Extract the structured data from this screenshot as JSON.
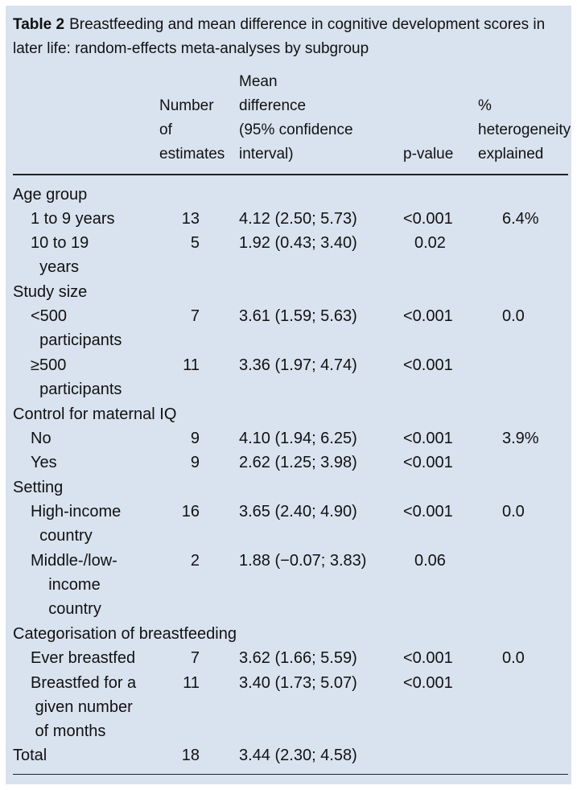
{
  "caption": {
    "label": "Table 2",
    "text": "Breastfeeding and mean difference in cognitive development scores in later life: random-effects meta-analyses by subgroup"
  },
  "headers": {
    "number": "Number\nof\nestimates",
    "mean": "Mean\ndifference\n(95% confidence\ninterval)",
    "pvalue": "p-value",
    "het": "%\nheterogeneity\nexplained"
  },
  "rows": {
    "age_group": "Age group",
    "age_1_label": "1 to 9 years",
    "age_1_n": "13",
    "age_1_md": "4.12 (2.50; 5.73)",
    "age_1_p": "<0.001",
    "age_1_het": "6.4%",
    "age_2_label": "10 to 19\n  years",
    "age_2_n": "5",
    "age_2_md": "1.92 (0.43; 3.40)",
    "age_2_p": "0.02",
    "study_size": "Study size",
    "ss_1_label": "<500\n  participants",
    "ss_1_n": "7",
    "ss_1_md": "3.61 (1.59; 5.63)",
    "ss_1_p": "<0.001",
    "ss_1_het": "0.0",
    "ss_2_label": "≥500\n  participants",
    "ss_2_n": "11",
    "ss_2_md": "3.36 (1.97; 4.74)",
    "ss_2_p": "<0.001",
    "maternal": "Control for maternal IQ",
    "mq_1_label": "No",
    "mq_1_n": "9",
    "mq_1_md": "4.10 (1.94; 6.25)",
    "mq_1_p": "<0.001",
    "mq_1_het": "3.9%",
    "mq_2_label": "Yes",
    "mq_2_n": "9",
    "mq_2_md": "2.62 (1.25; 3.98)",
    "mq_2_p": "<0.001",
    "setting": "Setting",
    "st_1_label": "High-income\n  country",
    "st_1_n": "16",
    "st_1_md": "3.65 (2.40; 4.90)",
    "st_1_p": "<0.001",
    "st_1_het": "0.0",
    "st_2_label": "Middle-/low-\n    income\n    country",
    "st_2_n": "2",
    "st_2_md": "1.88 (−0.07; 3.83)",
    "st_2_p": "0.06",
    "categorisation": "Categorisation of breastfeeding",
    "cb_1_label": "Ever breastfed",
    "cb_1_n": "7",
    "cb_1_md": "3.62 (1.66; 5.59)",
    "cb_1_p": "<0.001",
    "cb_1_het": "0.0",
    "cb_2_label": "Breastfed for a\n given number\n of months",
    "cb_2_n": "11",
    "cb_2_md": "3.40 (1.73; 5.07)",
    "cb_2_p": "<0.001",
    "total_label": "Total",
    "total_n": "18",
    "total_md": "3.44 (2.30; 4.58)"
  }
}
